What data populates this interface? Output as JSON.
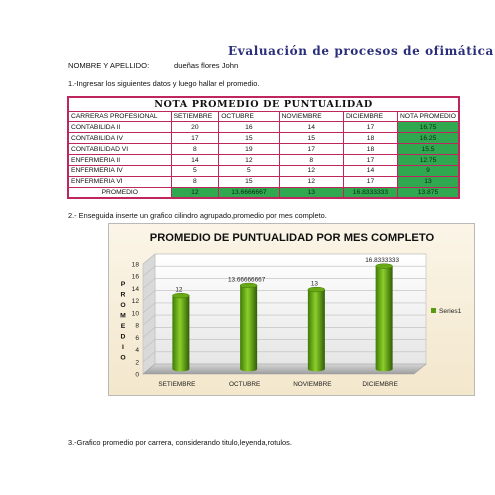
{
  "document": {
    "title": "Evaluación de procesos de ofimática",
    "name_label": "NOMBRE Y APELLIDO:",
    "name_value": "dueñas flores John",
    "step1": "1.-Ingresar los siguientes datos y luego hallar el promedio.",
    "step2": "2.- Enseguida inserte un grafico cilindro agrupado,promedio por mes completo.",
    "step3": "3.-Grafico promedio por carrera, considerando titulo,leyenda,rotulos."
  },
  "table": {
    "caption": "NOTA PROMEDIO DE PUNTUALIDAD",
    "headers": [
      "CARRERAS PROFESIONAL",
      "SETIEMBRE",
      "OCTUBRE",
      "NOVIEMBRE",
      "DICIEMBRE",
      "NOTA PROMEDIO"
    ],
    "rows": [
      [
        "CONTABILIDA II",
        "20",
        "16",
        "14",
        "17",
        "16.75"
      ],
      [
        "CONTABILIDA IV",
        "17",
        "15",
        "15",
        "18",
        "16.25"
      ],
      [
        "CONTABILIDAD VI",
        "8",
        "19",
        "17",
        "18",
        "15.5"
      ],
      [
        "ENFERMERIA II",
        "14",
        "12",
        "8",
        "17",
        "12.75"
      ],
      [
        "ENFERMERIA IV",
        "5",
        "5",
        "12",
        "14",
        "9"
      ],
      [
        "ENFERMERIA VI",
        "8",
        "15",
        "12",
        "17",
        "13"
      ]
    ],
    "average_row": [
      "PROMEDIO",
      "12",
      "13.6666667",
      "13",
      "16.8333333",
      "13.875"
    ],
    "highlight_color": "#2fa84f",
    "border_color": "#c0265e"
  },
  "chart_data": {
    "type": "bar",
    "style": "3d-cylinder",
    "title": "PROMEDIO DE PUNTUALIDAD POR MES COMPLETO",
    "ylabel": "PROMEDIO",
    "xlabel": "",
    "categories": [
      "SETIEMBRE",
      "OCTUBRE",
      "NOVIEMBRE",
      "DICIEMBRE"
    ],
    "series": [
      {
        "name": "Series1",
        "values": [
          12,
          13.6666667,
          13,
          16.8333333
        ],
        "color": "#5a9a12"
      }
    ],
    "data_labels": [
      "12",
      "13.66666667",
      "13",
      "16.8333333"
    ],
    "ylim": [
      0,
      18
    ],
    "yticks": [
      "0",
      "2",
      "4",
      "6",
      "8",
      "10",
      "12",
      "14",
      "16",
      "18"
    ],
    "grid": true,
    "legend_position": "right"
  }
}
